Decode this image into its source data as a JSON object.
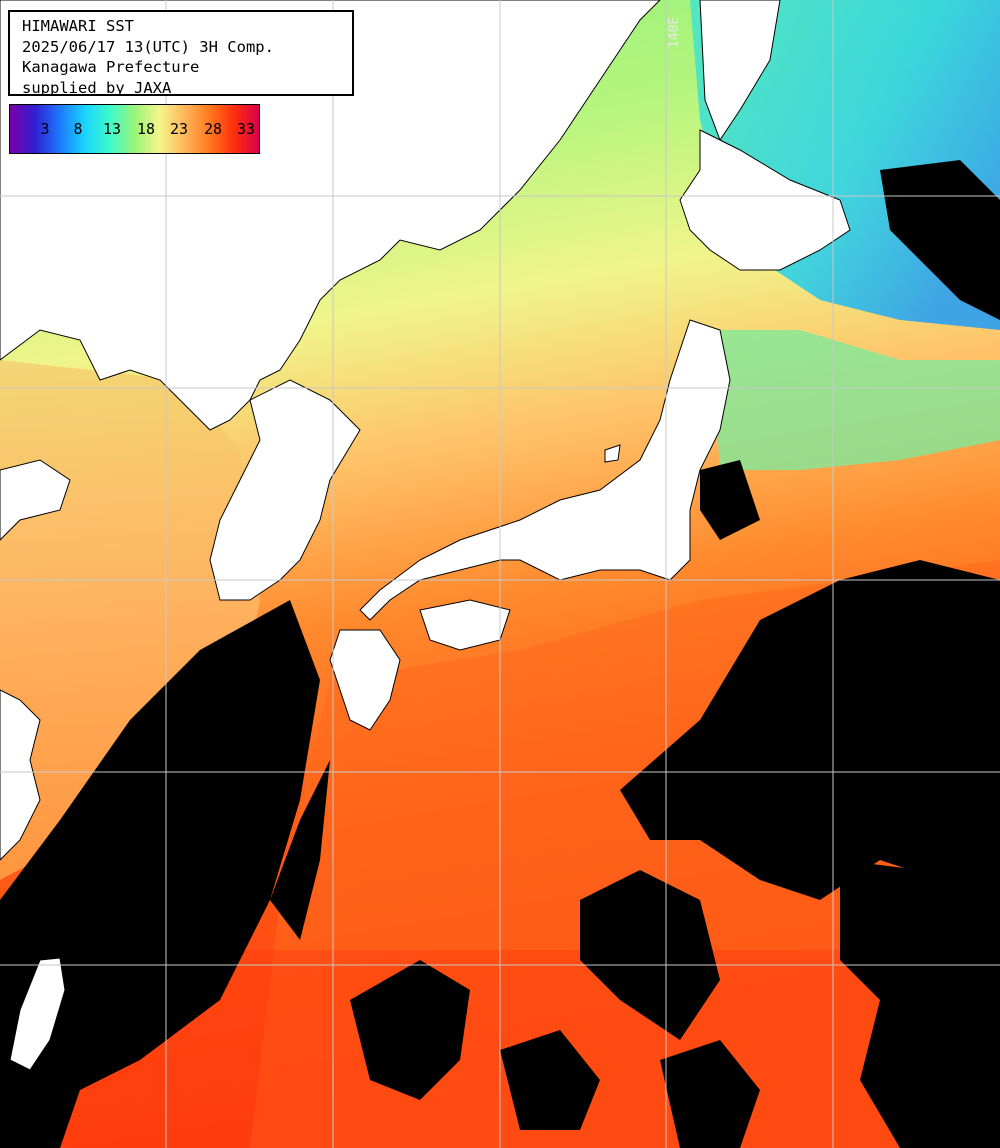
{
  "title": {
    "line1": "HIMAWARI SST",
    "line2": "2025/06/17 13(UTC) 3H Comp.",
    "line3": "Kanagawa Prefecture",
    "line4": "supplied by JAXA"
  },
  "colorbar": {
    "ticks": [
      "3",
      "8",
      "13",
      "18",
      "23",
      "28",
      "33"
    ],
    "stops": [
      "#7a00a8",
      "#2f1fd1",
      "#1e78ff",
      "#19d4ff",
      "#3dfacb",
      "#9af57a",
      "#f5f58a",
      "#ffb75a",
      "#ff7a1f",
      "#ff2e0d",
      "#d8004a"
    ]
  },
  "grid_label": "140E",
  "colors": {
    "cloud_no_data": "#000000",
    "land": "#ffffff",
    "grid": "#c8c8c8"
  }
}
